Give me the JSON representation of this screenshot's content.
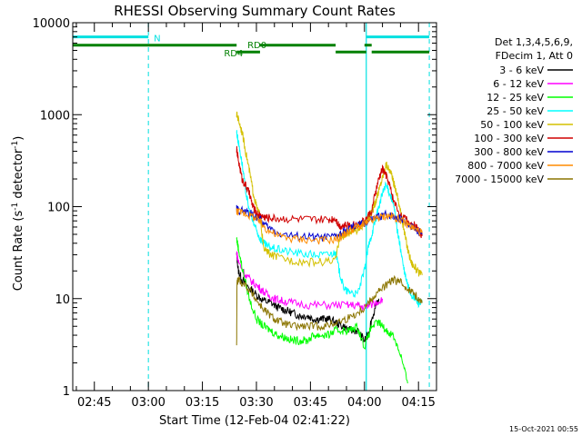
{
  "chart_data": {
    "type": "line",
    "title": "RHESSI Observing Summary Count Rates",
    "xlabel": "Start Time (12-Feb-04 02:41:22)",
    "ylabel_main": "Count Rate (s",
    "ylabel_sup1": "-1",
    "ylabel_mid": " detector",
    "ylabel_sup2": "-1",
    "ylabel_end": ")",
    "y_scale": "log",
    "ylim": [
      1,
      10000
    ],
    "x_start_min": 159,
    "x_end_min": 260,
    "x_ticks": [
      {
        "label": "02:45",
        "min": 165
      },
      {
        "label": "03:00",
        "min": 180
      },
      {
        "label": "03:15",
        "min": 195
      },
      {
        "label": "03:30",
        "min": 210
      },
      {
        "label": "03:45",
        "min": 225
      },
      {
        "label": "04:00",
        "min": 240
      },
      {
        "label": "04:15",
        "min": 255
      }
    ],
    "y_ticks": [
      {
        "label": "1",
        "value": 1
      },
      {
        "label": "10",
        "value": 10
      },
      {
        "label": "100",
        "value": 100
      },
      {
        "label": "1000",
        "value": 1000
      },
      {
        "label": "10000",
        "value": 10000
      }
    ],
    "legend_header": [
      "Det 1,3,4,5,6,9,",
      "FDecim 1, Att 0"
    ],
    "legend_placement": "right",
    "annotations": [
      {
        "label": "N",
        "min": 181.5,
        "value": 6900,
        "color": "#00e0e0"
      },
      {
        "label": "RD0",
        "min": 207.5,
        "value": 5800,
        "color": "#008000"
      },
      {
        "label": "RD4",
        "min": 201,
        "value": 4700,
        "color": "#008000"
      }
    ],
    "flag_bars": [
      {
        "name": "night",
        "color": "#00e0e0",
        "value": 7000,
        "segments": [
          [
            159,
            180
          ],
          [
            240.5,
            258
          ]
        ]
      },
      {
        "name": "decim-rd0",
        "color": "#008000",
        "value": 5700,
        "segments": [
          [
            159,
            204.5
          ],
          [
            211,
            232
          ],
          [
            240,
            242
          ]
        ]
      },
      {
        "name": "decim-rd4",
        "color": "#008000",
        "value": 4800,
        "segments": [
          [
            204.5,
            211
          ],
          [
            232,
            240.5
          ],
          [
            242,
            258
          ]
        ]
      }
    ],
    "vlines_dashed": [
      {
        "min": 159,
        "color": "#00e0e0"
      },
      {
        "min": 180,
        "color": "#00e0e0"
      },
      {
        "min": 258,
        "color": "#00e0e0"
      }
    ],
    "vlines_solid": [
      {
        "min": 240.5,
        "color": "#00e0e0"
      }
    ],
    "series": [
      {
        "name": "3 - 6 keV",
        "color": "#000000",
        "x": [
          204.5,
          205,
          206,
          208,
          210,
          212,
          214,
          216,
          218,
          220,
          222,
          224,
          226,
          228,
          230,
          232,
          234,
          236,
          238,
          240,
          241,
          242,
          244
        ],
        "y": [
          30,
          20,
          16,
          13,
          11,
          9.5,
          9,
          8,
          7.5,
          7,
          6.5,
          6.5,
          6,
          6,
          6,
          5.5,
          5,
          4.5,
          4.5,
          3.5,
          4,
          6,
          10
        ]
      },
      {
        "name": "6 - 12 keV",
        "color": "#ff00ff",
        "x": [
          204.5,
          205,
          207,
          209,
          211,
          213,
          215,
          217,
          220,
          225,
          230,
          235,
          238,
          240,
          243,
          245
        ],
        "y": [
          32,
          25,
          18,
          15,
          13,
          11,
          10,
          9.5,
          9,
          8.5,
          8.5,
          8.5,
          8.5,
          8,
          9,
          10
        ]
      },
      {
        "name": "12 - 25 keV",
        "color": "#00ff00",
        "x": [
          204.5,
          205,
          206,
          208,
          210,
          212,
          214,
          216,
          218,
          220,
          222,
          224,
          226,
          228,
          230,
          232,
          234,
          236,
          238,
          240,
          242,
          244,
          246,
          248,
          250,
          252
        ],
        "y": [
          45,
          35,
          22,
          10,
          6,
          5,
          4.5,
          4,
          3.8,
          3.5,
          3.5,
          3.5,
          4,
          4,
          4,
          4.5,
          4.5,
          4.5,
          5,
          3,
          5,
          5.5,
          4.5,
          4,
          2.5,
          1.2
        ]
      },
      {
        "name": "25 - 50 keV",
        "color": "#00ffff",
        "x": [
          204.5,
          205,
          206,
          207,
          208,
          209,
          210,
          211,
          212,
          213,
          215,
          218,
          222,
          226,
          230,
          232,
          233,
          234,
          235,
          236,
          238,
          240,
          241,
          242,
          243,
          244,
          245,
          246,
          247,
          248,
          249,
          250,
          251,
          252,
          253,
          254,
          255,
          256
        ],
        "y": [
          650,
          500,
          300,
          150,
          90,
          70,
          55,
          45,
          40,
          37,
          35,
          33,
          31,
          30,
          30,
          32,
          20,
          14,
          12,
          12,
          11,
          20,
          35,
          50,
          70,
          100,
          140,
          170,
          140,
          110,
          60,
          35,
          20,
          14,
          11,
          10,
          9,
          9
        ]
      },
      {
        "name": "50 - 100 keV",
        "color": "#d4c000",
        "x": [
          204.5,
          205,
          206,
          207,
          208,
          209,
          210,
          211,
          212,
          214,
          216,
          220,
          224,
          228,
          232,
          233,
          234,
          235,
          236,
          238,
          240,
          242,
          243,
          244,
          245,
          246,
          247,
          248,
          249,
          250,
          251,
          252,
          253,
          254,
          255,
          256
        ],
        "y": [
          1000,
          900,
          650,
          400,
          250,
          150,
          100,
          80,
          35,
          30,
          28,
          26,
          25,
          25,
          26,
          45,
          48,
          50,
          52,
          56,
          65,
          85,
          110,
          150,
          210,
          290,
          250,
          190,
          140,
          90,
          55,
          35,
          25,
          22,
          19,
          18
        ]
      },
      {
        "name": "100 - 300 keV",
        "color": "#d00000",
        "x": [
          204.5,
          205,
          206,
          207,
          208,
          209,
          210,
          211,
          212,
          213,
          215,
          218,
          222,
          226,
          230,
          232,
          233,
          234,
          236,
          238,
          240,
          242,
          243,
          244,
          245,
          246,
          247,
          248,
          250,
          252,
          254,
          255,
          256
        ],
        "y": [
          420,
          320,
          200,
          170,
          140,
          100,
          85,
          80,
          78,
          76,
          75,
          74,
          73,
          72,
          72,
          75,
          62,
          62,
          63,
          65,
          70,
          90,
          140,
          200,
          260,
          220,
          170,
          120,
          80,
          70,
          62,
          55,
          48
        ]
      },
      {
        "name": "300 - 800 keV",
        "color": "#0000d0",
        "x": [
          204.5,
          205,
          207,
          209,
          211,
          213,
          216,
          220,
          224,
          228,
          232,
          234,
          236,
          238,
          240,
          242,
          244,
          246,
          248,
          250,
          252,
          254,
          256
        ],
        "y": [
          95,
          92,
          88,
          82,
          72,
          60,
          52,
          48,
          47,
          46,
          47,
          52,
          58,
          62,
          66,
          72,
          78,
          82,
          80,
          74,
          66,
          58,
          50
        ]
      },
      {
        "name": "800 - 7000 keV",
        "color": "#ff8c00",
        "x": [
          204.5,
          205,
          207,
          209,
          211,
          213,
          216,
          220,
          224,
          228,
          232,
          234,
          236,
          238,
          240,
          242,
          244,
          246,
          248,
          250,
          252,
          254,
          256
        ],
        "y": [
          90,
          88,
          84,
          78,
          68,
          56,
          48,
          45,
          44,
          43,
          44,
          49,
          55,
          60,
          64,
          70,
          76,
          79,
          78,
          72,
          64,
          57,
          52
        ]
      },
      {
        "name": "7000 - 15000 keV",
        "color": "#8b7500",
        "x": [
          204.5,
          204.6,
          205,
          207,
          209,
          211,
          213,
          215,
          217,
          220,
          223,
          226,
          229,
          232,
          235,
          238,
          240,
          242,
          244,
          246,
          248,
          250,
          252,
          254,
          256
        ],
        "y": [
          3,
          15,
          16,
          14,
          11,
          8.5,
          7,
          6,
          5.5,
          5,
          5,
          5,
          5,
          5.5,
          6,
          7,
          8,
          10,
          12,
          14,
          16,
          15,
          13,
          11,
          9
        ]
      }
    ]
  },
  "timestamp": "15-Oct-2021 00:55"
}
